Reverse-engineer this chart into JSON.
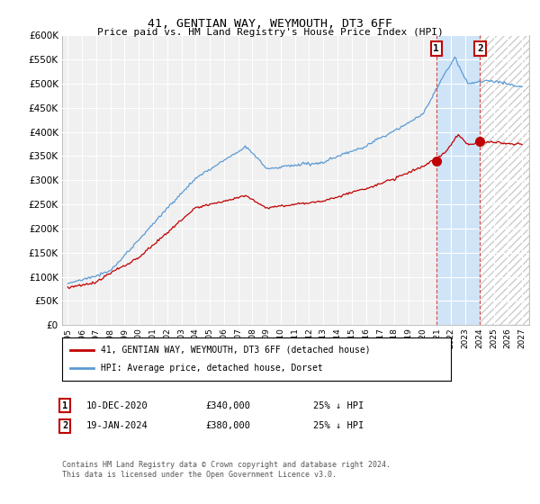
{
  "title": "41, GENTIAN WAY, WEYMOUTH, DT3 6FF",
  "subtitle": "Price paid vs. HM Land Registry's House Price Index (HPI)",
  "ylim": [
    0,
    600000
  ],
  "yticks": [
    0,
    50000,
    100000,
    150000,
    200000,
    250000,
    300000,
    350000,
    400000,
    450000,
    500000,
    550000,
    600000
  ],
  "hpi_color": "#5b9bd5",
  "price_color": "#c00000",
  "vline_color": "#c00000",
  "annotation_box_color": "#c00000",
  "background_color": "#ffffff",
  "plot_bg_color": "#f0f0f0",
  "grid_color": "#ffffff",
  "shade_between_color": "#d0e4f7",
  "shade_after_color": "#e8e8e8",
  "legend_label_red": "41, GENTIAN WAY, WEYMOUTH, DT3 6FF (detached house)",
  "legend_label_blue": "HPI: Average price, detached house, Dorset",
  "transaction1_date": "10-DEC-2020",
  "transaction1_price": "£340,000",
  "transaction1_note": "25% ↓ HPI",
  "transaction2_date": "19-JAN-2024",
  "transaction2_price": "£380,000",
  "transaction2_note": "25% ↓ HPI",
  "footer": "Contains HM Land Registry data © Crown copyright and database right 2024.\nThis data is licensed under the Open Government Licence v3.0.",
  "t1_year": 2020.958,
  "t2_year": 2024.042,
  "t1_price": 340000,
  "t2_price": 380000,
  "xend_year": 2027
}
